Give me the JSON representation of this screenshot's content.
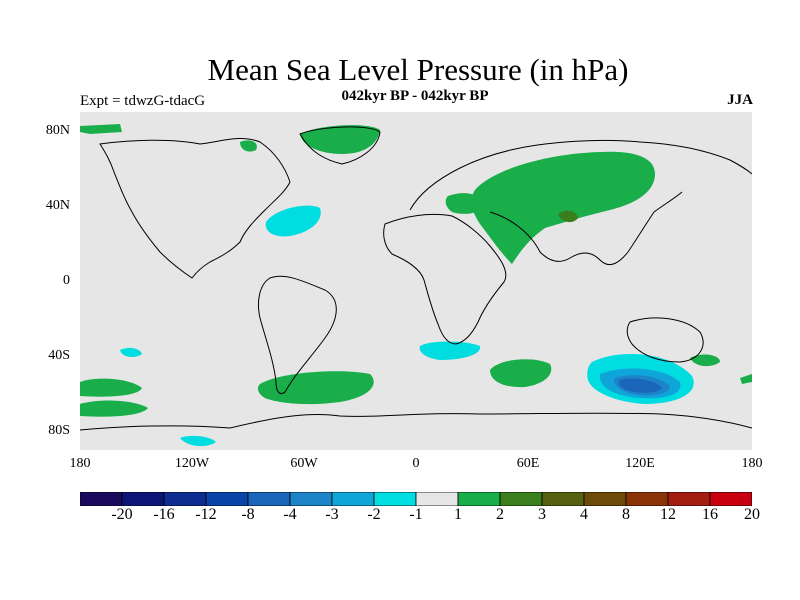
{
  "title": "Mean Sea Level Pressure (in hPa)",
  "left_label": "Expt = tdwzG-tdacG",
  "center_label": "042kyr BP - 042kyr BP",
  "right_label": "JJA",
  "lat_labels": [
    "80N",
    "40N",
    "0",
    "40S",
    "80S"
  ],
  "lon_labels": [
    "180",
    "120W",
    "60W",
    "0",
    "60E",
    "120E",
    "180"
  ],
  "colorbar": {
    "colors": [
      "#1a0a5e",
      "#0c1677",
      "#0f2d91",
      "#0a44a8",
      "#1a66bb",
      "#1e84c8",
      "#10a5d8",
      "#00dde0",
      "#e6e6e6",
      "#1aae4a",
      "#3a7e1e",
      "#556010",
      "#6c4a0a",
      "#8a3208",
      "#a51c10",
      "#c80010"
    ],
    "labels": [
      "-20",
      "-16",
      "-12",
      "-8",
      "-4",
      "-3",
      "-2",
      "-1",
      "1",
      "2",
      "3",
      "4",
      "8",
      "12",
      "16",
      "20"
    ]
  },
  "legend_colors": {
    "land_bg": "#e6e6e6",
    "positive": "#1aae4a",
    "negative": "#00dde0"
  }
}
